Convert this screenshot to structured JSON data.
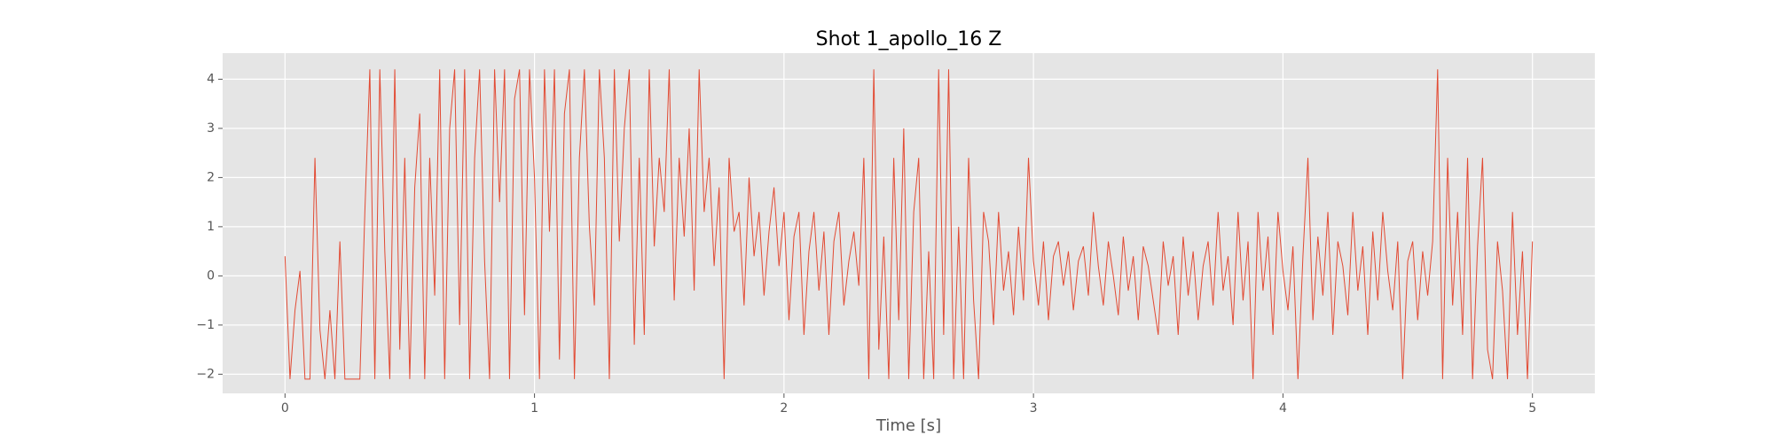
{
  "chart_data": {
    "type": "line",
    "title": "Shot 1_apollo_16 Z",
    "x_label": "Time [s]",
    "x": [
      0,
      0.02,
      0.04,
      0.06,
      0.08,
      0.1,
      0.12,
      0.14,
      0.16,
      0.18,
      0.2,
      0.22,
      0.24,
      0.26,
      0.28,
      0.3,
      0.32,
      0.34,
      0.36,
      0.38,
      0.4,
      0.42,
      0.44,
      0.46,
      0.48,
      0.5,
      0.52,
      0.54,
      0.56,
      0.58,
      0.6,
      0.62,
      0.64,
      0.66,
      0.68,
      0.7,
      0.72,
      0.74,
      0.76,
      0.78,
      0.8,
      0.82,
      0.84,
      0.86,
      0.88,
      0.9,
      0.92,
      0.94,
      0.96,
      0.98,
      1,
      1.02,
      1.04,
      1.06,
      1.08,
      1.1,
      1.12,
      1.14,
      1.16,
      1.18,
      1.2,
      1.22,
      1.24,
      1.26,
      1.28,
      1.3,
      1.32,
      1.34,
      1.36,
      1.38,
      1.4,
      1.42,
      1.44,
      1.46,
      1.48,
      1.5,
      1.52,
      1.54,
      1.56,
      1.58,
      1.6,
      1.62,
      1.64,
      1.66,
      1.68,
      1.7,
      1.72,
      1.74,
      1.76,
      1.78,
      1.8,
      1.82,
      1.84,
      1.86,
      1.88,
      1.9,
      1.92,
      1.94,
      1.96,
      1.98,
      2,
      2.02,
      2.04,
      2.06,
      2.08,
      2.1,
      2.12,
      2.14,
      2.16,
      2.18,
      2.2,
      2.22,
      2.24,
      2.26,
      2.28,
      2.3,
      2.32,
      2.34,
      2.36,
      2.38,
      2.4,
      2.42,
      2.44,
      2.46,
      2.48,
      2.5,
      2.52,
      2.54,
      2.56,
      2.58,
      2.6,
      2.62,
      2.64,
      2.66,
      2.68,
      2.7,
      2.72,
      2.74,
      2.76,
      2.78,
      2.8,
      2.82,
      2.84,
      2.86,
      2.88,
      2.9,
      2.92,
      2.94,
      2.96,
      2.98,
      3,
      3.02,
      3.04,
      3.06,
      3.08,
      3.1,
      3.12,
      3.14,
      3.16,
      3.18,
      3.2,
      3.22,
      3.24,
      3.26,
      3.28,
      3.3,
      3.32,
      3.34,
      3.36,
      3.38,
      3.4,
      3.42,
      3.44,
      3.46,
      3.48,
      3.5,
      3.52,
      3.54,
      3.56,
      3.58,
      3.6,
      3.62,
      3.64,
      3.66,
      3.68,
      3.7,
      3.72,
      3.74,
      3.76,
      3.78,
      3.8,
      3.82,
      3.84,
      3.86,
      3.88,
      3.9,
      3.92,
      3.94,
      3.96,
      3.98,
      4,
      4.02,
      4.04,
      4.06,
      4.08,
      4.1,
      4.12,
      4.14,
      4.16,
      4.18,
      4.2,
      4.22,
      4.24,
      4.26,
      4.28,
      4.3,
      4.32,
      4.34,
      4.36,
      4.38,
      4.4,
      4.42,
      4.44,
      4.46,
      4.48,
      4.5,
      4.52,
      4.54,
      4.56,
      4.58,
      4.6,
      4.62,
      4.64,
      4.66,
      4.68,
      4.7,
      4.72,
      4.74,
      4.76,
      4.78,
      4.8,
      4.82,
      4.84,
      4.86,
      4.88,
      4.9,
      4.92,
      4.94,
      4.96,
      4.98,
      5
    ],
    "series": [
      {
        "color": "#e24a33",
        "values": [
          0.4,
          -2.1,
          -0.7,
          0.1,
          -2.1,
          -2.1,
          2.4,
          -1.1,
          -2.1,
          -0.7,
          -2.1,
          0.7,
          -2.1,
          -2.1,
          -2.1,
          -2.1,
          1.3,
          4.2,
          -2.1,
          4.2,
          0.5,
          -2.1,
          4.2,
          -1.5,
          2.4,
          -2.1,
          1.8,
          3.3,
          -2.1,
          2.4,
          -0.4,
          4.2,
          -2.1,
          3.0,
          4.2,
          -1.0,
          4.2,
          -2.1,
          2.4,
          4.2,
          0.3,
          -2.1,
          4.2,
          1.5,
          4.2,
          -2.1,
          3.6,
          4.2,
          -0.8,
          4.2,
          2.0,
          -2.1,
          4.2,
          0.9,
          4.2,
          -1.7,
          3.3,
          4.2,
          -2.1,
          2.4,
          4.2,
          1.0,
          -0.6,
          4.2,
          2.4,
          -2.1,
          4.2,
          0.7,
          3.0,
          4.2,
          -1.4,
          2.4,
          -1.2,
          4.2,
          0.6,
          2.4,
          1.3,
          4.2,
          -0.5,
          2.4,
          0.8,
          3.0,
          -0.3,
          4.2,
          1.3,
          2.4,
          0.2,
          1.8,
          -2.1,
          2.4,
          0.9,
          1.3,
          -0.6,
          2.0,
          0.4,
          1.3,
          -0.4,
          0.9,
          1.8,
          0.2,
          1.3,
          -0.9,
          0.8,
          1.3,
          -1.2,
          0.5,
          1.3,
          -0.3,
          0.9,
          -1.2,
          0.7,
          1.3,
          -0.6,
          0.3,
          0.9,
          -0.2,
          2.4,
          -2.1,
          4.2,
          -1.5,
          0.8,
          -2.1,
          2.4,
          -0.9,
          3.0,
          -2.1,
          1.3,
          2.4,
          -2.1,
          0.5,
          -2.1,
          4.2,
          -1.2,
          4.2,
          -2.1,
          1.0,
          -2.1,
          2.4,
          -0.5,
          -2.1,
          1.3,
          0.7,
          -1.0,
          1.3,
          -0.3,
          0.5,
          -0.8,
          1.0,
          -0.5,
          2.4,
          0.3,
          -0.6,
          0.7,
          -0.9,
          0.4,
          0.7,
          -0.2,
          0.5,
          -0.7,
          0.3,
          0.6,
          -0.4,
          1.3,
          0.2,
          -0.6,
          0.7,
          0.0,
          -0.8,
          0.8,
          -0.3,
          0.4,
          -0.9,
          0.6,
          0.2,
          -0.5,
          -1.2,
          0.7,
          -0.2,
          0.4,
          -1.2,
          0.8,
          -0.4,
          0.5,
          -0.9,
          0.2,
          0.7,
          -0.6,
          1.3,
          -0.3,
          0.4,
          -1.0,
          1.3,
          -0.5,
          0.7,
          -2.1,
          1.3,
          -0.3,
          0.8,
          -1.2,
          1.3,
          0.1,
          -0.7,
          0.6,
          -2.1,
          0.4,
          2.4,
          -0.9,
          0.8,
          -0.4,
          1.3,
          -1.2,
          0.7,
          0.2,
          -0.8,
          1.3,
          -0.3,
          0.6,
          -1.2,
          0.9,
          -0.5,
          1.3,
          0.1,
          -0.7,
          0.7,
          -2.1,
          0.3,
          0.7,
          -0.9,
          0.5,
          -0.4,
          0.7,
          4.2,
          -2.1,
          2.4,
          -0.6,
          1.3,
          -1.2,
          2.4,
          -2.1,
          0.6,
          2.4,
          -1.5,
          -2.1,
          0.7,
          -0.3,
          -2.1,
          1.3,
          -1.2,
          0.5,
          -2.1,
          0.7
        ]
      }
    ],
    "xlim": [
      -0.25,
      5.25
    ],
    "xticks": [
      0,
      1,
      2,
      3,
      4,
      5
    ],
    "ylim": [
      -2.39,
      4.53
    ],
    "yticks": [
      {
        "value": -2,
        "label": "−2"
      },
      {
        "value": -1,
        "label": "−1"
      },
      0,
      1,
      2,
      3,
      4
    ],
    "grid": true
  }
}
